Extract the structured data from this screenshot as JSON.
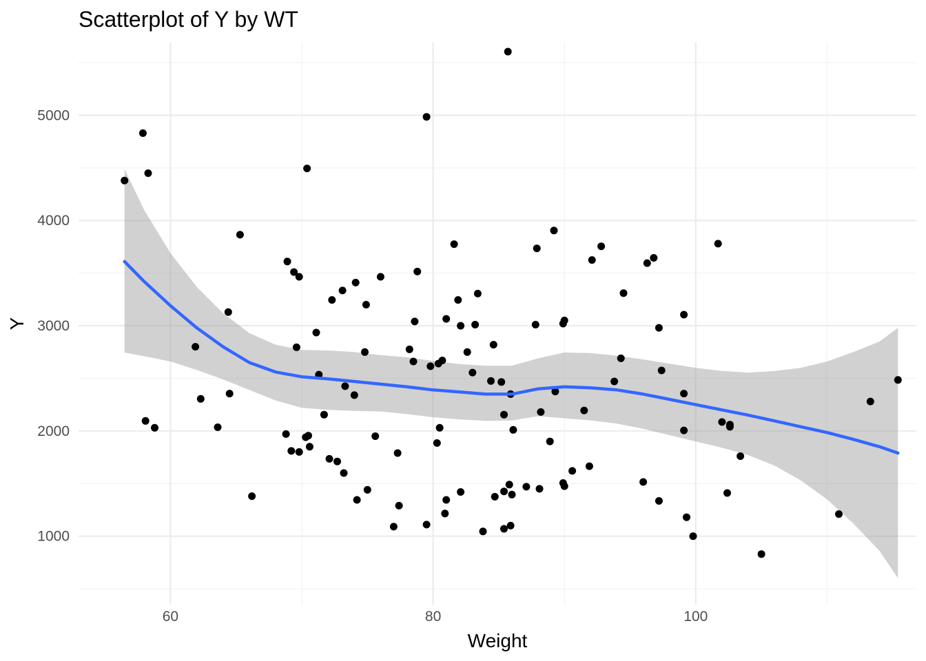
{
  "chart_data": {
    "type": "scatter",
    "title": "Scatterplot of Y by WT",
    "xlabel": "Weight",
    "ylabel": "Y",
    "xlim": [
      53,
      116.8
    ],
    "ylim": [
      350,
      5690
    ],
    "xticks": [
      60,
      80,
      100
    ],
    "yticks": [
      1000,
      2000,
      3000,
      4000,
      5000
    ],
    "grid": true,
    "legend": "none",
    "colors": {
      "points": "#000000",
      "smooth_line": "#3366ff",
      "confidence_band": "#999999"
    },
    "points": [
      {
        "x": 56.5,
        "y": 4380
      },
      {
        "x": 57.9,
        "y": 4830
      },
      {
        "x": 58.1,
        "y": 2095
      },
      {
        "x": 58.3,
        "y": 4450
      },
      {
        "x": 58.8,
        "y": 2030
      },
      {
        "x": 61.9,
        "y": 2800
      },
      {
        "x": 62.3,
        "y": 2305
      },
      {
        "x": 63.6,
        "y": 2035
      },
      {
        "x": 64.4,
        "y": 3130
      },
      {
        "x": 64.5,
        "y": 2355
      },
      {
        "x": 65.3,
        "y": 3865
      },
      {
        "x": 66.2,
        "y": 1380
      },
      {
        "x": 68.8,
        "y": 1970
      },
      {
        "x": 68.9,
        "y": 3610
      },
      {
        "x": 69.2,
        "y": 1810
      },
      {
        "x": 69.4,
        "y": 3510
      },
      {
        "x": 69.6,
        "y": 2795
      },
      {
        "x": 69.8,
        "y": 3465
      },
      {
        "x": 69.8,
        "y": 1800
      },
      {
        "x": 70.3,
        "y": 1940
      },
      {
        "x": 70.4,
        "y": 4495
      },
      {
        "x": 70.5,
        "y": 1955
      },
      {
        "x": 70.6,
        "y": 1850
      },
      {
        "x": 71.1,
        "y": 2935
      },
      {
        "x": 71.3,
        "y": 2535
      },
      {
        "x": 71.7,
        "y": 2155
      },
      {
        "x": 72.1,
        "y": 1735
      },
      {
        "x": 72.3,
        "y": 3245
      },
      {
        "x": 72.7,
        "y": 1710
      },
      {
        "x": 73.1,
        "y": 3335
      },
      {
        "x": 73.2,
        "y": 1600
      },
      {
        "x": 73.3,
        "y": 2425
      },
      {
        "x": 74.0,
        "y": 2340
      },
      {
        "x": 74.1,
        "y": 3410
      },
      {
        "x": 74.2,
        "y": 1345
      },
      {
        "x": 74.8,
        "y": 2750
      },
      {
        "x": 74.9,
        "y": 3200
      },
      {
        "x": 75.0,
        "y": 1440
      },
      {
        "x": 75.6,
        "y": 1950
      },
      {
        "x": 76.0,
        "y": 3465
      },
      {
        "x": 77.0,
        "y": 1090
      },
      {
        "x": 77.3,
        "y": 1790
      },
      {
        "x": 77.4,
        "y": 1290
      },
      {
        "x": 78.2,
        "y": 2775
      },
      {
        "x": 78.5,
        "y": 2660
      },
      {
        "x": 78.6,
        "y": 3040
      },
      {
        "x": 78.8,
        "y": 3515
      },
      {
        "x": 79.5,
        "y": 4985
      },
      {
        "x": 79.5,
        "y": 1110
      },
      {
        "x": 79.8,
        "y": 2615
      },
      {
        "x": 80.3,
        "y": 1885
      },
      {
        "x": 80.4,
        "y": 2640
      },
      {
        "x": 80.5,
        "y": 2030
      },
      {
        "x": 80.7,
        "y": 2670
      },
      {
        "x": 80.9,
        "y": 1215
      },
      {
        "x": 81.0,
        "y": 1345
      },
      {
        "x": 81.0,
        "y": 3065
      },
      {
        "x": 81.6,
        "y": 3775
      },
      {
        "x": 81.9,
        "y": 3245
      },
      {
        "x": 82.1,
        "y": 3000
      },
      {
        "x": 82.1,
        "y": 1420
      },
      {
        "x": 82.6,
        "y": 2750
      },
      {
        "x": 83.0,
        "y": 2555
      },
      {
        "x": 83.2,
        "y": 3010
      },
      {
        "x": 83.4,
        "y": 3305
      },
      {
        "x": 83.8,
        "y": 1045
      },
      {
        "x": 84.4,
        "y": 2475
      },
      {
        "x": 84.6,
        "y": 2820
      },
      {
        "x": 84.7,
        "y": 1375
      },
      {
        "x": 85.2,
        "y": 2465
      },
      {
        "x": 85.4,
        "y": 2155
      },
      {
        "x": 85.4,
        "y": 1425
      },
      {
        "x": 85.4,
        "y": 1070
      },
      {
        "x": 85.7,
        "y": 5605
      },
      {
        "x": 85.8,
        "y": 1490
      },
      {
        "x": 85.9,
        "y": 2350
      },
      {
        "x": 85.9,
        "y": 1100
      },
      {
        "x": 86.0,
        "y": 1395
      },
      {
        "x": 86.1,
        "y": 2010
      },
      {
        "x": 87.1,
        "y": 1470
      },
      {
        "x": 87.8,
        "y": 3010
      },
      {
        "x": 87.9,
        "y": 3735
      },
      {
        "x": 88.1,
        "y": 1450
      },
      {
        "x": 88.2,
        "y": 2180
      },
      {
        "x": 88.9,
        "y": 1900
      },
      {
        "x": 89.2,
        "y": 3905
      },
      {
        "x": 89.3,
        "y": 2375
      },
      {
        "x": 89.9,
        "y": 3020
      },
      {
        "x": 89.9,
        "y": 1505
      },
      {
        "x": 90.0,
        "y": 1475
      },
      {
        "x": 90.0,
        "y": 3050
      },
      {
        "x": 90.6,
        "y": 1620
      },
      {
        "x": 91.5,
        "y": 2195
      },
      {
        "x": 91.9,
        "y": 1665
      },
      {
        "x": 92.1,
        "y": 3625
      },
      {
        "x": 92.8,
        "y": 3755
      },
      {
        "x": 93.8,
        "y": 2470
      },
      {
        "x": 94.3,
        "y": 2690
      },
      {
        "x": 94.5,
        "y": 3310
      },
      {
        "x": 96.0,
        "y": 1515
      },
      {
        "x": 96.3,
        "y": 3595
      },
      {
        "x": 96.8,
        "y": 3645
      },
      {
        "x": 97.2,
        "y": 2980
      },
      {
        "x": 97.2,
        "y": 1335
      },
      {
        "x": 97.4,
        "y": 2575
      },
      {
        "x": 99.1,
        "y": 3105
      },
      {
        "x": 99.1,
        "y": 2355
      },
      {
        "x": 99.1,
        "y": 2005
      },
      {
        "x": 99.3,
        "y": 1180
      },
      {
        "x": 99.8,
        "y": 1000
      },
      {
        "x": 101.7,
        "y": 3780
      },
      {
        "x": 102.0,
        "y": 2085
      },
      {
        "x": 102.4,
        "y": 1410
      },
      {
        "x": 102.6,
        "y": 2060
      },
      {
        "x": 102.6,
        "y": 2040
      },
      {
        "x": 103.4,
        "y": 1760
      },
      {
        "x": 105.0,
        "y": 830
      },
      {
        "x": 110.9,
        "y": 1210
      },
      {
        "x": 113.3,
        "y": 2280
      },
      {
        "x": 115.4,
        "y": 2485
      }
    ],
    "smooth": [
      {
        "x": 56.5,
        "y": 3610,
        "lo": 2745,
        "hi": 4490
      },
      {
        "x": 58.0,
        "y": 3420,
        "lo": 2710,
        "hi": 4100
      },
      {
        "x": 60.0,
        "y": 3190,
        "lo": 2660,
        "hi": 3690
      },
      {
        "x": 62.0,
        "y": 2980,
        "lo": 2580,
        "hi": 3370
      },
      {
        "x": 64.0,
        "y": 2800,
        "lo": 2490,
        "hi": 3120
      },
      {
        "x": 66.0,
        "y": 2650,
        "lo": 2390,
        "hi": 2930
      },
      {
        "x": 68.0,
        "y": 2560,
        "lo": 2290,
        "hi": 2820
      },
      {
        "x": 70.0,
        "y": 2515,
        "lo": 2220,
        "hi": 2770
      },
      {
        "x": 72.0,
        "y": 2495,
        "lo": 2200,
        "hi": 2765
      },
      {
        "x": 74.0,
        "y": 2470,
        "lo": 2190,
        "hi": 2750
      },
      {
        "x": 76.0,
        "y": 2445,
        "lo": 2185,
        "hi": 2720
      },
      {
        "x": 78.0,
        "y": 2420,
        "lo": 2160,
        "hi": 2700
      },
      {
        "x": 80.0,
        "y": 2390,
        "lo": 2130,
        "hi": 2665
      },
      {
        "x": 82.0,
        "y": 2370,
        "lo": 2110,
        "hi": 2635
      },
      {
        "x": 84.0,
        "y": 2350,
        "lo": 2095,
        "hi": 2620
      },
      {
        "x": 86.0,
        "y": 2350,
        "lo": 2100,
        "hi": 2620
      },
      {
        "x": 88.0,
        "y": 2400,
        "lo": 2140,
        "hi": 2690
      },
      {
        "x": 90.0,
        "y": 2420,
        "lo": 2120,
        "hi": 2745
      },
      {
        "x": 92.0,
        "y": 2410,
        "lo": 2100,
        "hi": 2740
      },
      {
        "x": 94.0,
        "y": 2390,
        "lo": 2070,
        "hi": 2715
      },
      {
        "x": 96.0,
        "y": 2350,
        "lo": 2020,
        "hi": 2680
      },
      {
        "x": 98.0,
        "y": 2300,
        "lo": 1960,
        "hi": 2640
      },
      {
        "x": 100.0,
        "y": 2250,
        "lo": 1900,
        "hi": 2600
      },
      {
        "x": 102.0,
        "y": 2200,
        "lo": 1840,
        "hi": 2570
      },
      {
        "x": 104.0,
        "y": 2150,
        "lo": 1770,
        "hi": 2555
      },
      {
        "x": 106.0,
        "y": 2095,
        "lo": 1670,
        "hi": 2570
      },
      {
        "x": 108.0,
        "y": 2040,
        "lo": 1530,
        "hi": 2600
      },
      {
        "x": 110.0,
        "y": 1985,
        "lo": 1350,
        "hi": 2660
      },
      {
        "x": 112.0,
        "y": 1920,
        "lo": 1120,
        "hi": 2750
      },
      {
        "x": 114.0,
        "y": 1850,
        "lo": 860,
        "hi": 2850
      },
      {
        "x": 115.4,
        "y": 1790,
        "lo": 600,
        "hi": 2980
      }
    ]
  }
}
